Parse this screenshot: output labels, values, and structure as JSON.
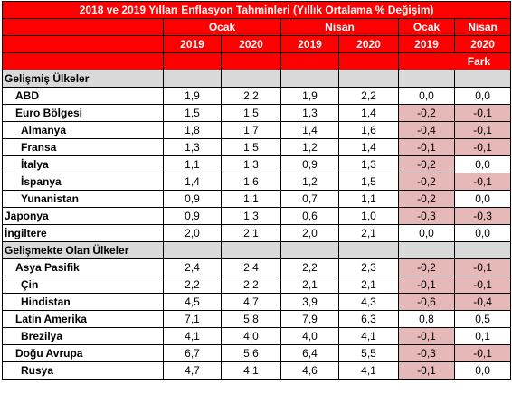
{
  "title": "2018 ve 2019 Yılları Enflasyon Tahminleri (Yıllık Ortalama % Değişim)",
  "headers": {
    "group1": "Ocak",
    "group2": "Nisan",
    "group3": "Ocak",
    "group4": "Nisan",
    "years": [
      "2019",
      "2020",
      "2019",
      "2020",
      "2019",
      "2020"
    ],
    "diff_label": "Fark"
  },
  "colors": {
    "header_bg": "#ff0000",
    "section_bg": "#d9d9d9",
    "negative_bg": "#e6b8b7"
  },
  "rows": [
    {
      "type": "section",
      "label": "Gelişmiş Ülkeler"
    },
    {
      "type": "data",
      "level": 1,
      "label": "ABD",
      "oc19": "1,9",
      "oc20": "2,2",
      "ni19": "1,9",
      "ni20": "2,2",
      "d_oc": "0,0",
      "d_ni": "0,0",
      "neg_oc": false,
      "neg_ni": false
    },
    {
      "type": "data",
      "level": 1,
      "label": "Euro Bölgesi",
      "oc19": "1,5",
      "oc20": "1,5",
      "ni19": "1,3",
      "ni20": "1,4",
      "d_oc": "-0,2",
      "d_ni": "-0,1",
      "neg_oc": true,
      "neg_ni": true
    },
    {
      "type": "data",
      "level": 2,
      "label": "Almanya",
      "oc19": "1,8",
      "oc20": "1,7",
      "ni19": "1,4",
      "ni20": "1,6",
      "d_oc": "-0,4",
      "d_ni": "-0,1",
      "neg_oc": true,
      "neg_ni": true
    },
    {
      "type": "data",
      "level": 2,
      "label": "Fransa",
      "oc19": "1,3",
      "oc20": "1,5",
      "ni19": "1,2",
      "ni20": "1,4",
      "d_oc": "-0,1",
      "d_ni": "-0,1",
      "neg_oc": true,
      "neg_ni": true
    },
    {
      "type": "data",
      "level": 2,
      "label": "İtalya",
      "oc19": "1,1",
      "oc20": "1,3",
      "ni19": "0,9",
      "ni20": "1,3",
      "d_oc": "-0,2",
      "d_ni": "0,0",
      "neg_oc": true,
      "neg_ni": false
    },
    {
      "type": "data",
      "level": 2,
      "label": "İspanya",
      "oc19": "1,4",
      "oc20": "1,6",
      "ni19": "1,2",
      "ni20": "1,5",
      "d_oc": "-0,2",
      "d_ni": "-0,1",
      "neg_oc": true,
      "neg_ni": true
    },
    {
      "type": "data",
      "level": 2,
      "label": "Yunanistan",
      "oc19": "0,9",
      "oc20": "1,1",
      "ni19": "0,7",
      "ni20": "1,1",
      "d_oc": "-0,2",
      "d_ni": "0,0",
      "neg_oc": true,
      "neg_ni": false
    },
    {
      "type": "data",
      "level": 0,
      "label": "Japonya",
      "oc19": "0,9",
      "oc20": "1,3",
      "ni19": "0,6",
      "ni20": "1,0",
      "d_oc": "-0,3",
      "d_ni": "-0,3",
      "neg_oc": true,
      "neg_ni": true
    },
    {
      "type": "data",
      "level": 0,
      "label": "İngiltere",
      "oc19": "2,0",
      "oc20": "2,1",
      "ni19": "2,0",
      "ni20": "2,1",
      "d_oc": "0,0",
      "d_ni": "0,0",
      "neg_oc": false,
      "neg_ni": false
    },
    {
      "type": "section",
      "label": "Gelişmekte Olan Ülkeler"
    },
    {
      "type": "data",
      "level": 1,
      "label": "Asya Pasifik",
      "oc19": "2,4",
      "oc20": "2,4",
      "ni19": "2,2",
      "ni20": "2,3",
      "d_oc": "-0,2",
      "d_ni": "-0,1",
      "neg_oc": true,
      "neg_ni": true
    },
    {
      "type": "data",
      "level": 2,
      "label": "Çin",
      "oc19": "2,2",
      "oc20": "2,2",
      "ni19": "2,1",
      "ni20": "2,1",
      "d_oc": "-0,1",
      "d_ni": "-0,1",
      "neg_oc": true,
      "neg_ni": true
    },
    {
      "type": "data",
      "level": 2,
      "label": "Hindistan",
      "oc19": "4,5",
      "oc20": "4,7",
      "ni19": "3,9",
      "ni20": "4,3",
      "d_oc": "-0,6",
      "d_ni": "-0,4",
      "neg_oc": true,
      "neg_ni": true
    },
    {
      "type": "data",
      "level": 1,
      "label": "Latin Amerika",
      "oc19": "7,1",
      "oc20": "5,8",
      "ni19": "7,9",
      "ni20": "6,3",
      "d_oc": "0,8",
      "d_ni": "0,5",
      "neg_oc": false,
      "neg_ni": false
    },
    {
      "type": "data",
      "level": 2,
      "label": "Brezilya",
      "oc19": "4,1",
      "oc20": "4,0",
      "ni19": "4,0",
      "ni20": "4,1",
      "d_oc": "-0,1",
      "d_ni": "0,1",
      "neg_oc": true,
      "neg_ni": false
    },
    {
      "type": "data",
      "level": 1,
      "label": "Doğu Avrupa",
      "oc19": "6,7",
      "oc20": "5,6",
      "ni19": "6,4",
      "ni20": "5,5",
      "d_oc": "-0,3",
      "d_ni": "-0,1",
      "neg_oc": true,
      "neg_ni": true
    },
    {
      "type": "data",
      "level": 2,
      "label": "Rusya",
      "oc19": "4,7",
      "oc20": "4,1",
      "ni19": "4,6",
      "ni20": "4,1",
      "d_oc": "-0,1",
      "d_ni": "0,0",
      "neg_oc": true,
      "neg_ni": false
    }
  ]
}
